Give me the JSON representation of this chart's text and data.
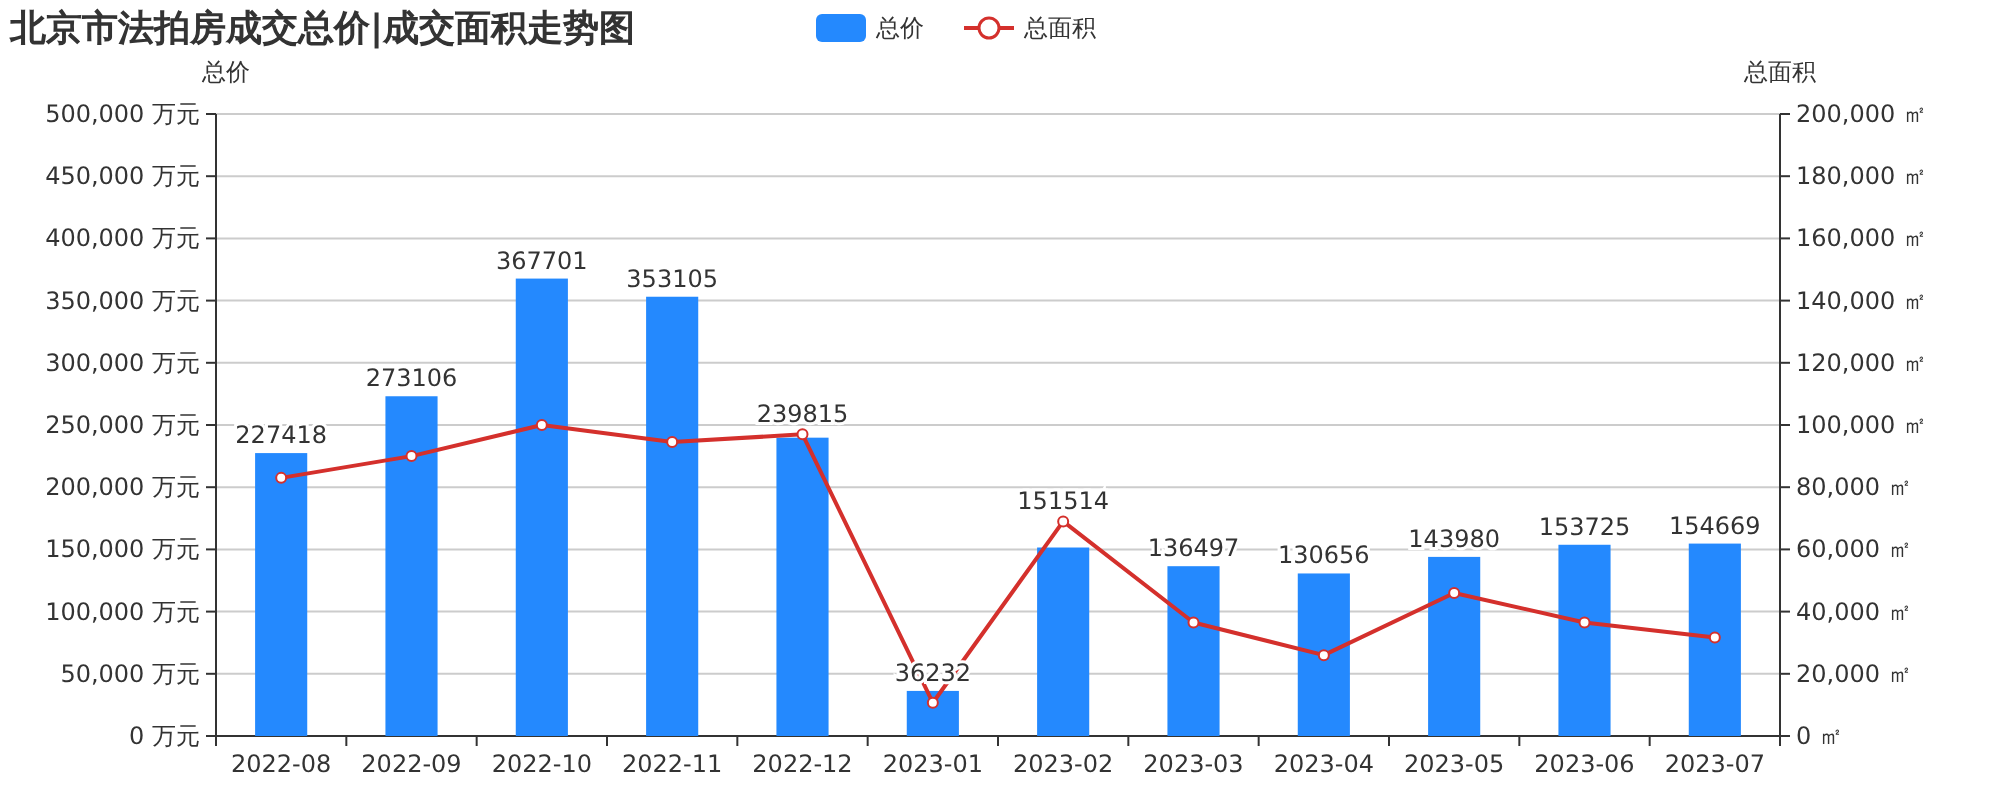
{
  "chart_data": {
    "type": "bar",
    "title": "北京市法拍房成交总价|成交面积走势图",
    "ylabel": "总价",
    "y2label": "总面积",
    "categories": [
      "2022-08",
      "2022-09",
      "2022-10",
      "2022-11",
      "2022-12",
      "2023-01",
      "2023-02",
      "2023-03",
      "2023-04",
      "2023-05",
      "2023-06",
      "2023-07"
    ],
    "series": [
      {
        "name": "总价",
        "color": "#2489fe",
        "values": [
          227418,
          273106,
          367701,
          353105,
          239815,
          36232,
          151514,
          136497,
          130656,
          143980,
          153725,
          154669
        ],
        "value_labels": [
          "227418",
          "273106",
          "367701",
          "353105",
          "239815",
          "36232",
          "151514",
          "136497",
          "130656",
          "143980",
          "153725",
          "154669"
        ]
      },
      {
        "name": "总面积",
        "type": "line",
        "axis": "y2",
        "color": "#d4302c",
        "marker": "circle",
        "values": [
          83000,
          90000,
          100000,
          94500,
          97000,
          10700,
          69000,
          36500,
          26000,
          46000,
          36500,
          31700
        ]
      }
    ],
    "ylim": [
      0,
      500000
    ],
    "yticks": [
      {
        "value": 0,
        "label": "0 万元"
      },
      {
        "value": 50000,
        "label": "50,000 万元"
      },
      {
        "value": 100000,
        "label": "100,000 万元"
      },
      {
        "value": 150000,
        "label": "150,000 万元"
      },
      {
        "value": 200000,
        "label": "200,000 万元"
      },
      {
        "value": 250000,
        "label": "250,000 万元"
      },
      {
        "value": 300000,
        "label": "300,000 万元"
      },
      {
        "value": 350000,
        "label": "350,000 万元"
      },
      {
        "value": 400000,
        "label": "400,000 万元"
      },
      {
        "value": 450000,
        "label": "450,000 万元"
      },
      {
        "value": 500000,
        "label": "500,000 万元"
      }
    ],
    "y2lim": [
      0,
      200000
    ],
    "y2ticks": [
      {
        "value": 0,
        "label": "0 ㎡"
      },
      {
        "value": 20000,
        "label": "20,000 ㎡"
      },
      {
        "value": 40000,
        "label": "40,000 ㎡"
      },
      {
        "value": 60000,
        "label": "60,000 ㎡"
      },
      {
        "value": 80000,
        "label": "80,000 ㎡"
      },
      {
        "value": 100000,
        "label": "100,000 ㎡"
      },
      {
        "value": 120000,
        "label": "120,000 ㎡"
      },
      {
        "value": 140000,
        "label": "140,000 ㎡"
      },
      {
        "value": 160000,
        "label": "160,000 ㎡"
      },
      {
        "value": 180000,
        "label": "180,000 ㎡"
      },
      {
        "value": 200000,
        "label": "200,000 ㎡"
      }
    ],
    "grid": "y",
    "legend": "top"
  }
}
